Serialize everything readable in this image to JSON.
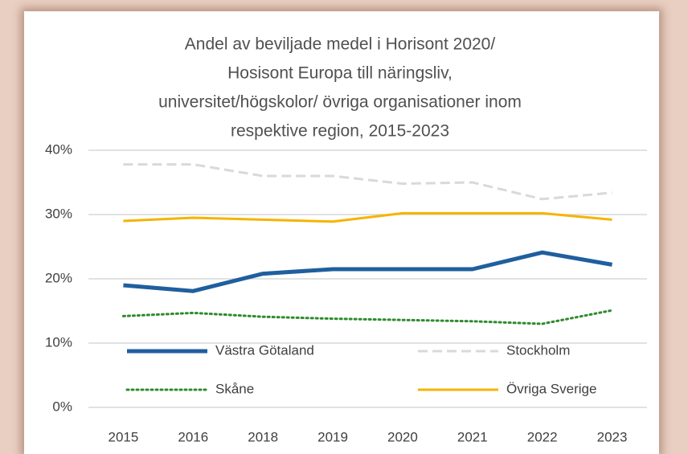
{
  "chart_data": {
    "type": "line",
    "title": [
      "Andel av beviljade medel i Horisont 2020/",
      "Hosisont Europa  till näringsliv,",
      "universitet/högskolor/ övriga organisationer inom",
      "respektive region, 2015-2023"
    ],
    "categories": [
      "2015",
      "2016",
      "2018",
      "2019",
      "2020",
      "2021",
      "2022",
      "2023"
    ],
    "series": [
      {
        "name": "Västra Götaland",
        "color": "#1f5f9e",
        "style": "solid",
        "values": [
          19,
          18.1,
          20.8,
          21.5,
          21.5,
          21.5,
          24.1,
          22.2
        ]
      },
      {
        "name": "Stockholm",
        "color": "#d9d9d9",
        "style": "dashed",
        "values": [
          37.8,
          37.8,
          36,
          36,
          34.8,
          35,
          32.4,
          33.4
        ]
      },
      {
        "name": "Skåne",
        "color": "#2e8b2e",
        "style": "dotted",
        "values": [
          14.2,
          14.7,
          14.1,
          13.8,
          13.6,
          13.4,
          13,
          15.1
        ]
      },
      {
        "name": "Övriga Sverige",
        "color": "#f5b400",
        "style": "solid",
        "values": [
          29,
          29.5,
          29.2,
          28.9,
          30.2,
          30.2,
          30.2,
          29.2
        ]
      }
    ],
    "ylim": [
      0,
      40
    ],
    "yticks": [
      {
        "value": 0,
        "label": "0%"
      },
      {
        "value": 10,
        "label": "10%"
      },
      {
        "value": 20,
        "label": "20%"
      },
      {
        "value": 30,
        "label": "30%"
      },
      {
        "value": 40,
        "label": "40%"
      }
    ],
    "grid": true
  }
}
